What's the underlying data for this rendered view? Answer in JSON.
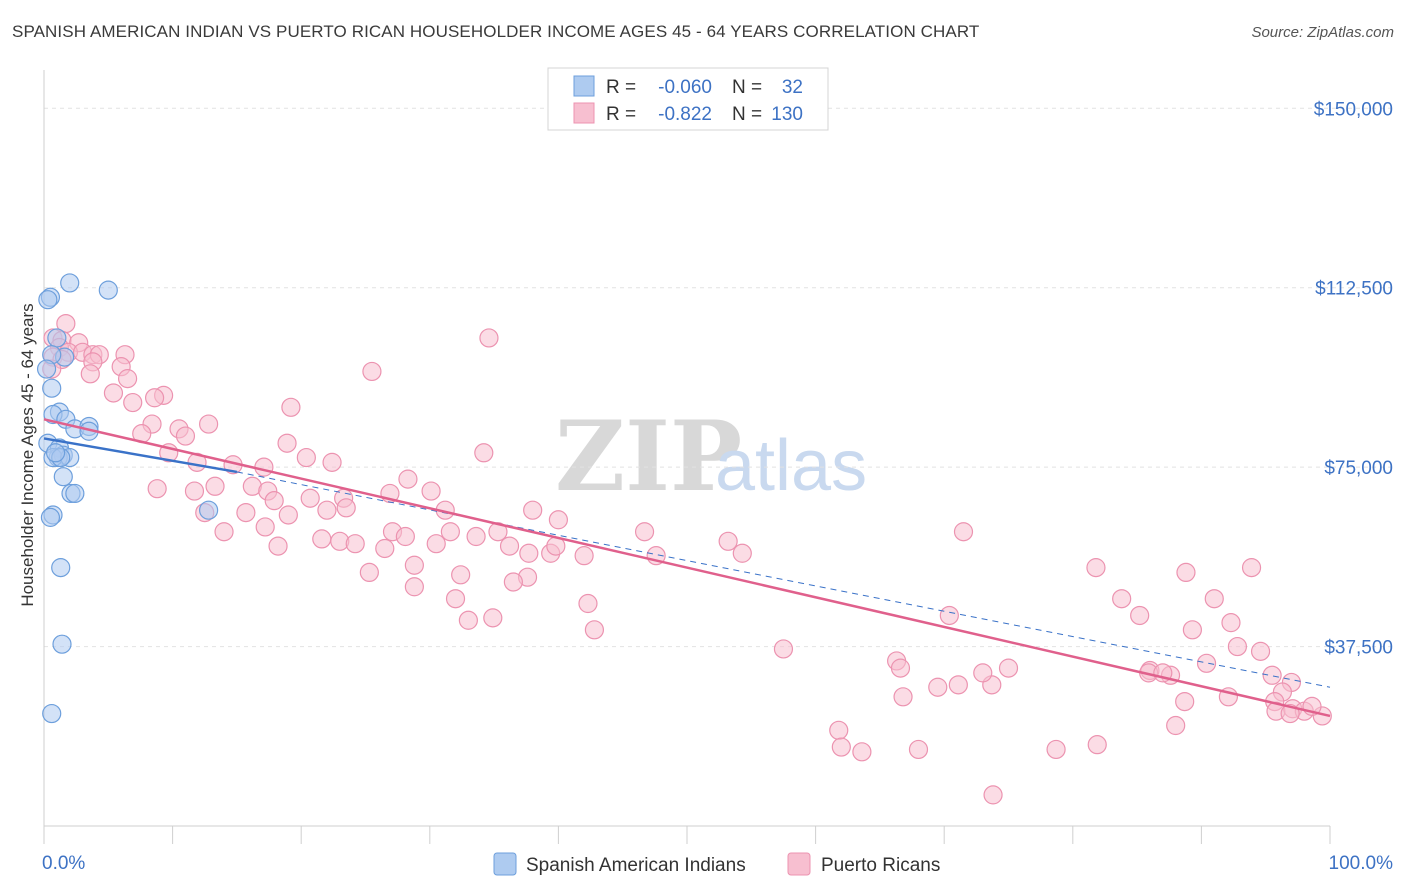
{
  "title": "SPANISH AMERICAN INDIAN VS PUERTO RICAN HOUSEHOLDER INCOME AGES 45 - 64 YEARS CORRELATION CHART",
  "source": "Source: ZipAtlas.com",
  "watermark": {
    "zip": "ZIP",
    "atlas": "atlas"
  },
  "colors": {
    "blue_fill": "#aecbf0",
    "blue_stroke": "#6d9fdc",
    "blue_line": "#3a72c8",
    "pink_fill": "#f7bfd0",
    "pink_stroke": "#ec93b0",
    "pink_line": "#e0608c",
    "axis_label": "#3d72c4",
    "grid": "#e2e2e2"
  },
  "legend": {
    "rows": [
      {
        "r_label": "R =",
        "r_value": "-0.060",
        "n_label": "N =",
        "n_value": "32",
        "series": "blue"
      },
      {
        "r_label": "R =",
        "r_value": "-0.822",
        "n_label": "N =",
        "n_value": "130",
        "series": "pink"
      }
    ]
  },
  "bottom_legend": [
    {
      "label": "Spanish American Indians",
      "series": "blue"
    },
    {
      "label": "Puerto Ricans",
      "series": "pink"
    }
  ],
  "chart_data": {
    "type": "scatter",
    "title": "SPANISH AMERICAN INDIAN VS PUERTO RICAN HOUSEHOLDER INCOME AGES 45 - 64 YEARS CORRELATION CHART",
    "xlabel": "",
    "ylabel": "Householder Income Ages 45 - 64 years",
    "xlim": [
      0,
      100
    ],
    "ylim": [
      0,
      158000
    ],
    "x_tick_labels": [
      "0.0%",
      "100.0%"
    ],
    "y_ticks": [
      {
        "value": 37500,
        "label": "$37,500"
      },
      {
        "value": 75000,
        "label": "$75,000"
      },
      {
        "value": 112500,
        "label": "$112,500"
      },
      {
        "value": 150000,
        "label": "$150,000"
      }
    ],
    "x_minor_ticks": [
      0,
      10,
      20,
      30,
      40,
      50,
      60,
      70,
      80,
      90,
      100
    ],
    "series": [
      {
        "name": "Spanish American Indians",
        "color": "blue",
        "points": [
          [
            2.0,
            113500
          ],
          [
            5.0,
            112000
          ],
          [
            0.5,
            110500
          ],
          [
            0.3,
            110000
          ],
          [
            1.0,
            102000
          ],
          [
            1.6,
            98000
          ],
          [
            0.6,
            98500
          ],
          [
            0.2,
            95500
          ],
          [
            0.6,
            91500
          ],
          [
            1.2,
            86500
          ],
          [
            0.7,
            86000
          ],
          [
            1.7,
            85000
          ],
          [
            2.4,
            83000
          ],
          [
            3.5,
            83500
          ],
          [
            3.5,
            82500
          ],
          [
            0.3,
            80000
          ],
          [
            1.2,
            79000
          ],
          [
            1.5,
            77500
          ],
          [
            1.1,
            77000
          ],
          [
            0.7,
            77000
          ],
          [
            2.0,
            77000
          ],
          [
            1.5,
            73000
          ],
          [
            2.1,
            69500
          ],
          [
            2.4,
            69500
          ],
          [
            12.8,
            66000
          ],
          [
            0.7,
            65000
          ],
          [
            0.5,
            64500
          ],
          [
            1.3,
            54000
          ],
          [
            1.4,
            38000
          ],
          [
            0.6,
            23500
          ],
          [
            1.3,
            77000
          ],
          [
            0.9,
            78000
          ]
        ],
        "trend": {
          "x0": 0,
          "y0": 81000,
          "x1": 15,
          "y1": 74000,
          "dashed_to": 100,
          "dashed_y": 29000
        }
      },
      {
        "name": "Puerto Ricans",
        "color": "pink",
        "points": [
          [
            1.7,
            105000
          ],
          [
            0.7,
            102000
          ],
          [
            1.4,
            101500
          ],
          [
            2.7,
            101000
          ],
          [
            1.2,
            100000
          ],
          [
            1.9,
            99000
          ],
          [
            3.0,
            99000
          ],
          [
            0.7,
            98000
          ],
          [
            3.8,
            98500
          ],
          [
            4.3,
            98500
          ],
          [
            1.4,
            97500
          ],
          [
            3.8,
            97000
          ],
          [
            6.3,
            98500
          ],
          [
            6.0,
            96000
          ],
          [
            0.6,
            95500
          ],
          [
            34.6,
            102000
          ],
          [
            25.5,
            95000
          ],
          [
            3.6,
            94500
          ],
          [
            6.5,
            93500
          ],
          [
            5.4,
            90500
          ],
          [
            9.3,
            90000
          ],
          [
            8.6,
            89500
          ],
          [
            6.9,
            88500
          ],
          [
            19.2,
            87500
          ],
          [
            8.4,
            84000
          ],
          [
            12.8,
            84000
          ],
          [
            10.5,
            83000
          ],
          [
            7.6,
            82000
          ],
          [
            11.0,
            81500
          ],
          [
            18.9,
            80000
          ],
          [
            9.7,
            78000
          ],
          [
            34.2,
            78000
          ],
          [
            20.4,
            77000
          ],
          [
            11.9,
            76000
          ],
          [
            22.4,
            76000
          ],
          [
            14.7,
            75500
          ],
          [
            17.1,
            75000
          ],
          [
            28.3,
            72500
          ],
          [
            13.3,
            71000
          ],
          [
            16.2,
            71000
          ],
          [
            17.4,
            70000
          ],
          [
            8.8,
            70500
          ],
          [
            30.1,
            70000
          ],
          [
            11.7,
            70000
          ],
          [
            20.7,
            68500
          ],
          [
            23.3,
            68500
          ],
          [
            26.9,
            69500
          ],
          [
            17.9,
            68000
          ],
          [
            22.0,
            66000
          ],
          [
            31.2,
            66000
          ],
          [
            12.5,
            65500
          ],
          [
            23.5,
            66500
          ],
          [
            38.0,
            66000
          ],
          [
            15.7,
            65500
          ],
          [
            19.0,
            65000
          ],
          [
            40.0,
            64000
          ],
          [
            17.2,
            62500
          ],
          [
            14.0,
            61500
          ],
          [
            27.1,
            61500
          ],
          [
            35.3,
            61500
          ],
          [
            31.6,
            61500
          ],
          [
            28.1,
            60500
          ],
          [
            33.6,
            60500
          ],
          [
            21.6,
            60000
          ],
          [
            23.0,
            59500
          ],
          [
            24.2,
            59000
          ],
          [
            18.2,
            58500
          ],
          [
            26.5,
            58000
          ],
          [
            36.2,
            58500
          ],
          [
            30.5,
            59000
          ],
          [
            37.7,
            57000
          ],
          [
            39.4,
            57000
          ],
          [
            42.0,
            56500
          ],
          [
            47.6,
            56500
          ],
          [
            39.8,
            58500
          ],
          [
            25.3,
            53000
          ],
          [
            28.8,
            54500
          ],
          [
            32.4,
            52500
          ],
          [
            37.6,
            52000
          ],
          [
            28.8,
            50000
          ],
          [
            36.5,
            51000
          ],
          [
            32.0,
            47500
          ],
          [
            33.0,
            43000
          ],
          [
            42.3,
            46500
          ],
          [
            34.9,
            43500
          ],
          [
            42.8,
            41000
          ],
          [
            53.2,
            59500
          ],
          [
            46.7,
            61500
          ],
          [
            71.5,
            61500
          ],
          [
            54.3,
            57000
          ],
          [
            81.8,
            54000
          ],
          [
            88.8,
            53000
          ],
          [
            93.9,
            54000
          ],
          [
            83.8,
            47500
          ],
          [
            91.0,
            47500
          ],
          [
            89.3,
            41000
          ],
          [
            92.3,
            42500
          ],
          [
            90.4,
            34000
          ],
          [
            92.8,
            37500
          ],
          [
            86.0,
            32500
          ],
          [
            94.6,
            36500
          ],
          [
            95.5,
            31500
          ],
          [
            97.0,
            30000
          ],
          [
            96.3,
            28000
          ],
          [
            85.9,
            32000
          ],
          [
            87.6,
            31500
          ],
          [
            95.7,
            26000
          ],
          [
            95.8,
            24000
          ],
          [
            97.1,
            24500
          ],
          [
            98.0,
            24000
          ],
          [
            99.4,
            23000
          ],
          [
            96.9,
            23500
          ],
          [
            98.6,
            25000
          ],
          [
            66.3,
            34500
          ],
          [
            69.5,
            29000
          ],
          [
            71.1,
            29500
          ],
          [
            57.5,
            37000
          ],
          [
            92.1,
            27000
          ],
          [
            88.7,
            26000
          ],
          [
            68.0,
            16000
          ],
          [
            73.7,
            29500
          ],
          [
            78.7,
            16000
          ],
          [
            88.0,
            21000
          ],
          [
            66.8,
            27000
          ],
          [
            85.2,
            44000
          ],
          [
            70.4,
            44000
          ],
          [
            73.0,
            32000
          ],
          [
            75.0,
            33000
          ],
          [
            61.8,
            20000
          ],
          [
            63.6,
            15500
          ],
          [
            62.0,
            16500
          ],
          [
            66.6,
            33000
          ],
          [
            73.8,
            6500
          ],
          [
            81.9,
            17000
          ],
          [
            87.0,
            32000
          ]
        ],
        "trend": {
          "x0": 0,
          "y0": 85000,
          "x1": 100,
          "y1": 23000
        }
      }
    ]
  }
}
